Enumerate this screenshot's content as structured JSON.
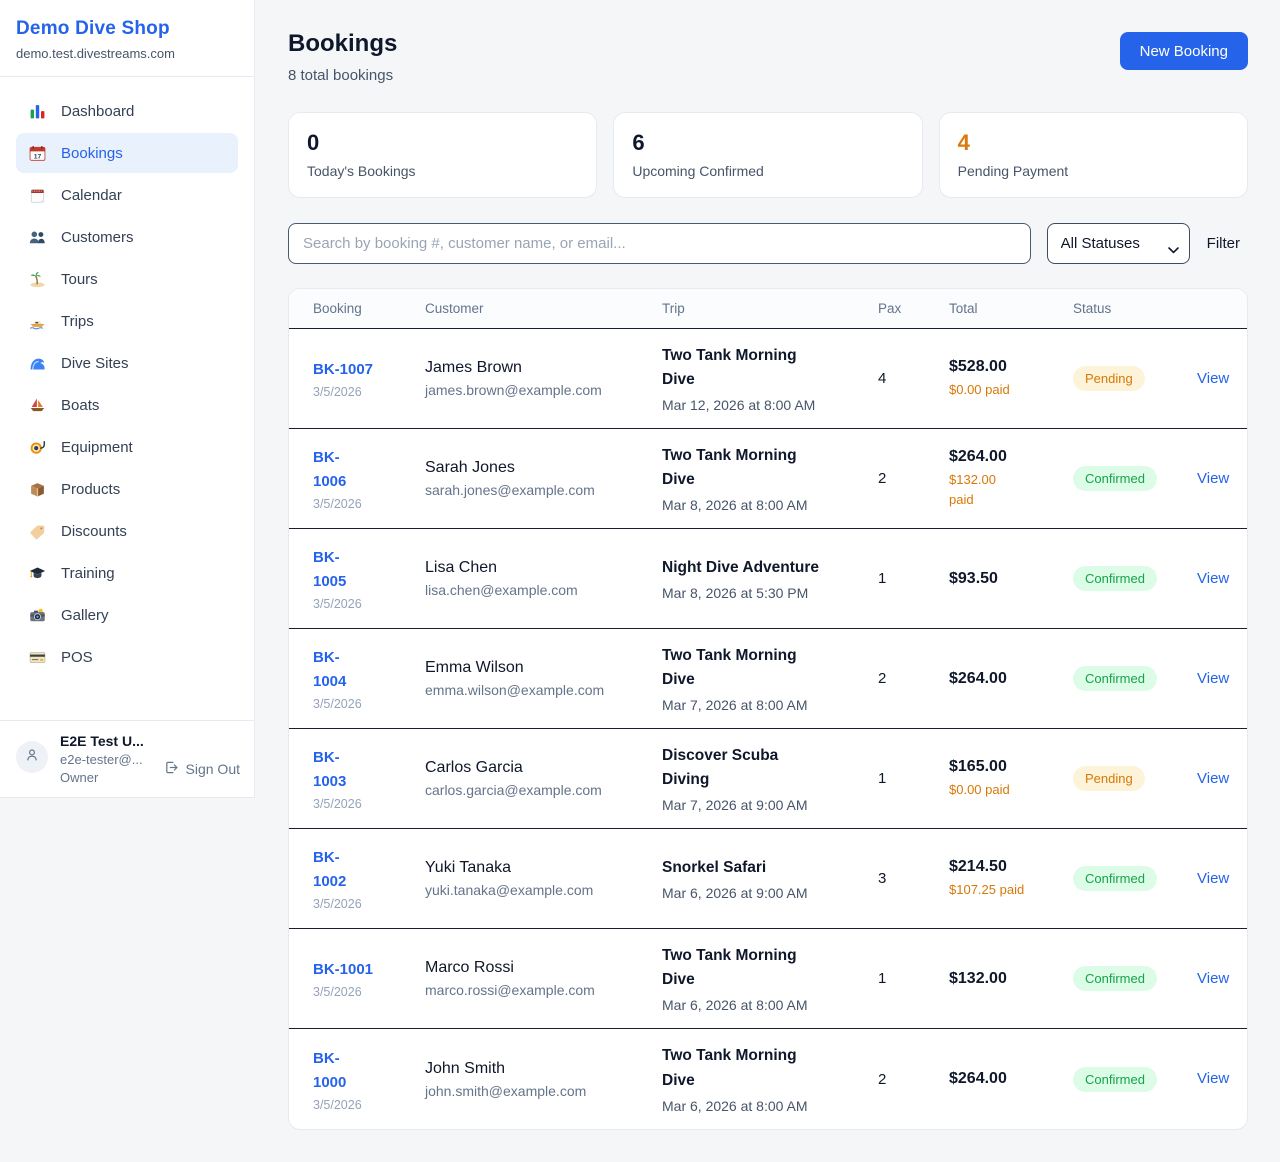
{
  "sidebar": {
    "shop_name": "Demo Dive Shop",
    "domain": "demo.test.divestreams.com",
    "items": [
      {
        "label": "Dashboard",
        "icon": "bar-chart-icon",
        "active": false
      },
      {
        "label": "Bookings",
        "icon": "calendar-date-icon",
        "active": true
      },
      {
        "label": "Calendar",
        "icon": "tear-off-calendar-icon",
        "active": false
      },
      {
        "label": "Customers",
        "icon": "people-icon",
        "active": false
      },
      {
        "label": "Tours",
        "icon": "island-icon",
        "active": false
      },
      {
        "label": "Trips",
        "icon": "speedboat-icon",
        "active": false
      },
      {
        "label": "Dive Sites",
        "icon": "wave-icon",
        "active": false
      },
      {
        "label": "Boats",
        "icon": "sailboat-icon",
        "active": false
      },
      {
        "label": "Equipment",
        "icon": "dive-mask-icon",
        "active": false
      },
      {
        "label": "Products",
        "icon": "package-icon",
        "active": false
      },
      {
        "label": "Discounts",
        "icon": "tag-icon",
        "active": false
      },
      {
        "label": "Training",
        "icon": "graduation-cap-icon",
        "active": false
      },
      {
        "label": "Gallery",
        "icon": "camera-icon",
        "active": false
      },
      {
        "label": "POS",
        "icon": "credit-card-icon",
        "active": false
      }
    ],
    "user": {
      "name": "E2E Test U...",
      "email": "e2e-tester@...",
      "role": "Owner",
      "sign_out_label": "Sign Out"
    }
  },
  "header": {
    "title": "Bookings",
    "subtitle": "8 total bookings",
    "new_booking_label": "New Booking"
  },
  "stats": {
    "cards": [
      {
        "value": "0",
        "label": "Today's Bookings",
        "color": "#0f172a"
      },
      {
        "value": "6",
        "label": "Upcoming Confirmed",
        "color": "#0f172a"
      },
      {
        "value": "4",
        "label": "Pending Payment",
        "color": "#d9790b"
      }
    ]
  },
  "filters": {
    "search_placeholder": "Search by booking #, customer name, or email...",
    "status_value": "All Statuses",
    "filter_label": "Filter"
  },
  "table": {
    "columns": [
      "Booking",
      "Customer",
      "Trip",
      "Pax",
      "Total",
      "Status"
    ],
    "view_label": "View",
    "rows": [
      {
        "id": "BK-1007",
        "id_display": "BK-1007",
        "date": "3/5/2026",
        "customer": "James Brown",
        "email": "james.brown@example.com",
        "trip": "Two Tank Morning Dive",
        "trip_display": "Two Tank Morning\nDive",
        "trip_datetime": "Mar 12, 2026 at 8:00 AM",
        "pax": "4",
        "total": "$528.00",
        "paid": "$0.00 paid",
        "status": "Pending"
      },
      {
        "id": "BK-1006",
        "id_display": "BK-\n1006",
        "date": "3/5/2026",
        "customer": "Sarah Jones",
        "email": "sarah.jones@example.com",
        "trip": "Two Tank Morning Dive",
        "trip_display": "Two Tank Morning\nDive",
        "trip_datetime": "Mar 8, 2026 at 8:00 AM",
        "pax": "2",
        "total": "$264.00",
        "paid": "$132.00\npaid",
        "status": "Confirmed"
      },
      {
        "id": "BK-1005",
        "id_display": "BK-\n1005",
        "date": "3/5/2026",
        "customer": "Lisa Chen",
        "email": "lisa.chen@example.com",
        "trip": "Night Dive Adventure",
        "trip_display": "Night Dive Adventure",
        "trip_datetime": "Mar 8, 2026 at 5:30 PM",
        "pax": "1",
        "total": "$93.50",
        "paid": "",
        "status": "Confirmed"
      },
      {
        "id": "BK-1004",
        "id_display": "BK-\n1004",
        "date": "3/5/2026",
        "customer": "Emma Wilson",
        "email": "emma.wilson@example.com",
        "trip": "Two Tank Morning Dive",
        "trip_display": "Two Tank Morning\nDive",
        "trip_datetime": "Mar 7, 2026 at 8:00 AM",
        "pax": "2",
        "total": "$264.00",
        "paid": "",
        "status": "Confirmed"
      },
      {
        "id": "BK-1003",
        "id_display": "BK-\n1003",
        "date": "3/5/2026",
        "customer": "Carlos Garcia",
        "email": "carlos.garcia@example.com",
        "trip": "Discover Scuba Diving",
        "trip_display": "Discover Scuba\nDiving",
        "trip_datetime": "Mar 7, 2026 at 9:00 AM",
        "pax": "1",
        "total": "$165.00",
        "paid": "$0.00 paid",
        "status": "Pending"
      },
      {
        "id": "BK-1002",
        "id_display": "BK-\n1002",
        "date": "3/5/2026",
        "customer": "Yuki Tanaka",
        "email": "yuki.tanaka@example.com",
        "trip": "Snorkel Safari",
        "trip_display": "Snorkel Safari",
        "trip_datetime": "Mar 6, 2026 at 9:00 AM",
        "pax": "3",
        "total": "$214.50",
        "paid": "$107.25 paid",
        "status": "Confirmed"
      },
      {
        "id": "BK-1001",
        "id_display": "BK-1001",
        "date": "3/5/2026",
        "customer": "Marco Rossi",
        "email": "marco.rossi@example.com",
        "trip": "Two Tank Morning Dive",
        "trip_display": "Two Tank Morning\nDive",
        "trip_datetime": "Mar 6, 2026 at 8:00 AM",
        "pax": "1",
        "total": "$132.00",
        "paid": "",
        "status": "Confirmed"
      },
      {
        "id": "BK-1000",
        "id_display": "BK-\n1000",
        "date": "3/5/2026",
        "customer": "John Smith",
        "email": "john.smith@example.com",
        "trip": "Two Tank Morning Dive",
        "trip_display": "Two Tank Morning\nDive",
        "trip_datetime": "Mar 6, 2026 at 8:00 AM",
        "pax": "2",
        "total": "$264.00",
        "paid": "",
        "status": "Confirmed"
      }
    ]
  },
  "colors": {
    "primary_blue": "#2563eb",
    "pending_text": "#d97706",
    "pending_bg": "#fdf3d9",
    "confirmed_text": "#16a34a",
    "confirmed_bg": "#dcfce7",
    "page_bg": "#f4f6f8"
  }
}
